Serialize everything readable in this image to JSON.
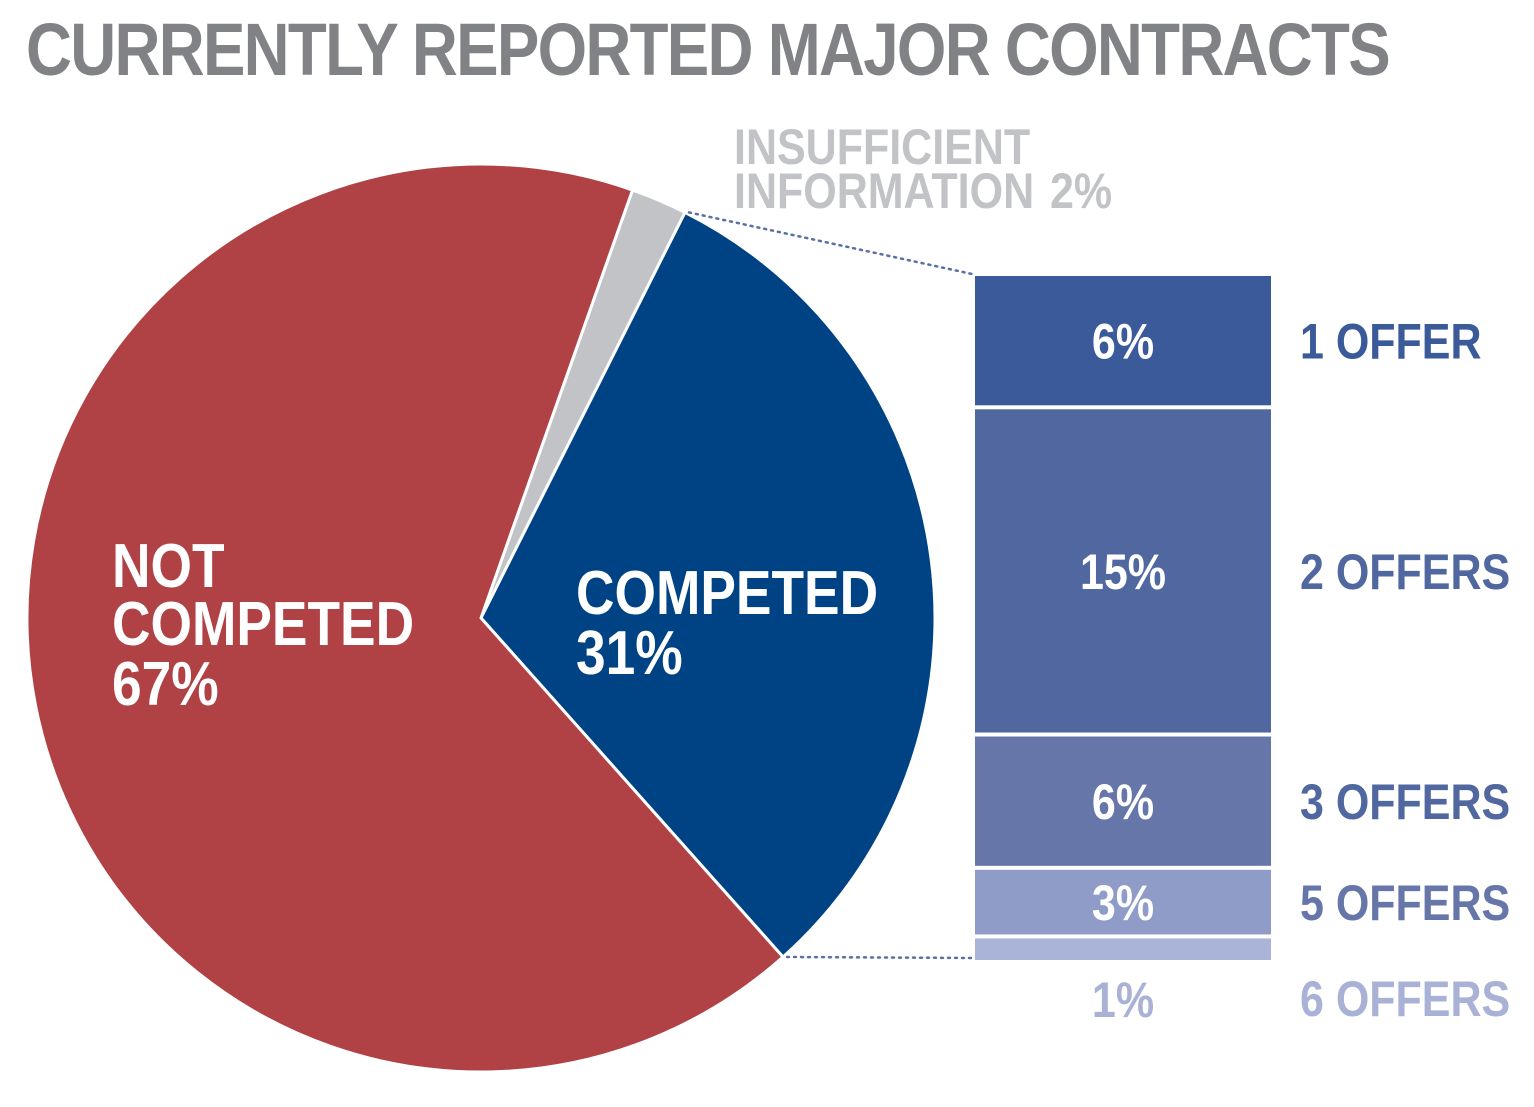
{
  "colors": {
    "title": "#818285",
    "not_competed": "#b04144",
    "insufficient": "#c2c3c6",
    "competed": "#004385",
    "offers": [
      "#3a5a9a",
      "#50689f",
      "#6676a8",
      "#8f9cc8",
      "#aab4d8"
    ],
    "offer_labels": [
      "#3a5a9a",
      "#50689f",
      "#50689f",
      "#6676a8",
      "#a9b2d6"
    ],
    "connector": "#5a6fa5",
    "white": "#ffffff"
  },
  "chart_data": {
    "type": "pie",
    "title": "CURRENTLY REPORTED MAJOR CONTRACTS",
    "slices": [
      {
        "key": "insufficient",
        "label_lines": [
          "INSUFFICIENT",
          "INFORMATION"
        ],
        "value_label": "2%",
        "value": 2
      },
      {
        "key": "competed",
        "label_lines": [
          "COMPETED"
        ],
        "value_label": "31%",
        "value": 31
      },
      {
        "key": "not_competed",
        "label_lines": [
          "NOT",
          "COMPETED"
        ],
        "value_label": "67%",
        "value": 67
      }
    ],
    "breakdown": {
      "of_slice": "competed",
      "type": "stacked-bar",
      "segments": [
        {
          "label": "1 OFFER",
          "value_label": "6%",
          "value": 6
        },
        {
          "label": "2 OFFERS",
          "value_label": "15%",
          "value": 15
        },
        {
          "label": "3 OFFERS",
          "value_label": "6%",
          "value": 6
        },
        {
          "label": "5 OFFERS",
          "value_label": "3%",
          "value": 3
        },
        {
          "label": "6 OFFERS",
          "value_label": "1%",
          "value": 1
        }
      ]
    }
  }
}
